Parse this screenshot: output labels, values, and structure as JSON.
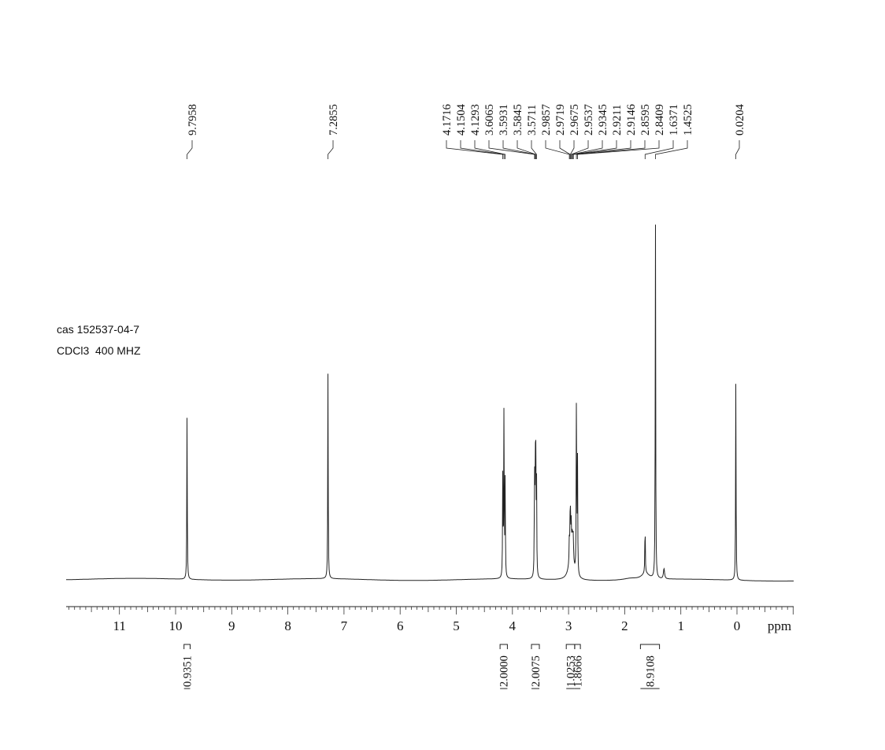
{
  "sample": {
    "line1": "cas 152537-04-7",
    "line2": "CDCl3  400 MHZ"
  },
  "chart_data": {
    "type": "line",
    "xlabel": "ppm",
    "xlim": [
      12,
      -1
    ],
    "x_reversed": true,
    "ticks_major": [
      11,
      10,
      9,
      8,
      7,
      6,
      5,
      4,
      3,
      2,
      1,
      0
    ],
    "peak_labels": [
      "9.7958",
      "7.2855",
      "4.1716",
      "4.1504",
      "4.1293",
      "3.6065",
      "3.5931",
      "3.5845",
      "3.5711",
      "2.9857",
      "2.9719",
      "2.9675",
      "2.9537",
      "2.9345",
      "2.9211",
      "2.9146",
      "2.8595",
      "2.8409",
      "1.6371",
      "1.4525",
      "0.0204"
    ],
    "peaks": [
      {
        "shift": 9.7958,
        "height": 0.4
      },
      {
        "shift": 7.2855,
        "height": 0.5
      },
      {
        "shift": 4.1716,
        "height": 0.25
      },
      {
        "shift": 4.1504,
        "height": 0.41
      },
      {
        "shift": 4.1293,
        "height": 0.24
      },
      {
        "shift": 3.6065,
        "height": 0.26
      },
      {
        "shift": 3.5931,
        "height": 0.27
      },
      {
        "shift": 3.5845,
        "height": 0.26
      },
      {
        "shift": 3.5711,
        "height": 0.25
      },
      {
        "shift": 2.9857,
        "height": 0.06
      },
      {
        "shift": 2.9719,
        "height": 0.07
      },
      {
        "shift": 2.9675,
        "height": 0.07
      },
      {
        "shift": 2.9537,
        "height": 0.06
      },
      {
        "shift": 2.9345,
        "height": 0.05
      },
      {
        "shift": 2.9211,
        "height": 0.05
      },
      {
        "shift": 2.9146,
        "height": 0.04
      },
      {
        "shift": 2.8595,
        "height": 0.45
      },
      {
        "shift": 2.8409,
        "height": 0.28
      },
      {
        "shift": 1.6371,
        "height": 0.13
      },
      {
        "shift": 1.4525,
        "height": 0.88
      },
      {
        "shift": 0.0204,
        "height": 0.48
      }
    ],
    "integrals": [
      {
        "value": "0.9351",
        "from": 9.85,
        "to": 9.74
      },
      {
        "value": "2.0000",
        "from": 4.22,
        "to": 4.09
      },
      {
        "value": "2.0075",
        "from": 3.66,
        "to": 3.52
      },
      {
        "value": "1.0253",
        "from": 3.04,
        "to": 2.89
      },
      {
        "value": "1.8666",
        "from": 2.89,
        "to": 2.79
      },
      {
        "value": "8.9108",
        "from": 1.72,
        "to": 1.38
      }
    ]
  }
}
